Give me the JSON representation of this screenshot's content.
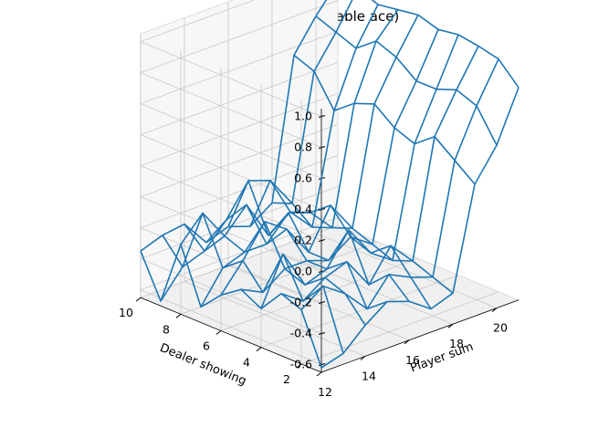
{
  "chart_data": {
    "type": "wireframe-3d",
    "title": "Value Function (Usable ace)",
    "xlabel": "Player sum",
    "ylabel": "Dealer showing",
    "zlabel": "",
    "x": [
      12,
      13,
      14,
      15,
      16,
      17,
      18,
      19,
      20,
      21
    ],
    "y": [
      1,
      2,
      3,
      4,
      5,
      6,
      7,
      8,
      9,
      10
    ],
    "xticks": [
      "12",
      "14",
      "16",
      "18",
      "20"
    ],
    "yticks": [
      "2",
      "4",
      "6",
      "8",
      "10"
    ],
    "zticks": [
      "-0.6",
      "-0.4",
      "-0.2",
      "0.0",
      "0.2",
      "0.4",
      "0.6",
      "0.8",
      "1.0"
    ],
    "zlim": [
      -0.65,
      1.05
    ],
    "grid": true,
    "color": "#1f77b4",
    "z": [
      [
        -0.62,
        -0.3,
        -0.25,
        -0.4,
        -0.33,
        -0.42,
        -0.55,
        -0.2,
        -0.62,
        -0.35
      ],
      [
        -0.58,
        -0.2,
        -0.35,
        -0.1,
        -0.4,
        -0.25,
        -0.35,
        -0.05,
        -0.45,
        -0.3
      ],
      [
        -0.45,
        -0.3,
        -0.25,
        -0.35,
        -0.3,
        -0.05,
        -0.3,
        -0.25,
        -0.4,
        -0.28
      ],
      [
        -0.35,
        -0.45,
        -0.2,
        -0.3,
        -0.3,
        -0.15,
        -0.3,
        -0.1,
        -0.25,
        -0.45
      ],
      [
        -0.4,
        -0.28,
        -0.4,
        -0.1,
        -0.35,
        -0.35,
        -0.15,
        -0.35,
        -0.05,
        -0.4
      ],
      [
        -0.5,
        -0.35,
        -0.2,
        -0.3,
        -0.25,
        -0.1,
        -0.2,
        -0.25,
        -0.1,
        -0.45
      ],
      [
        -0.45,
        -0.4,
        -0.35,
        -0.4,
        -0.35,
        -0.3,
        -0.35,
        -0.4,
        -0.3,
        -0.35
      ],
      [
        0.2,
        0.3,
        0.4,
        0.3,
        0.35,
        0.45,
        0.4,
        0.3,
        0.5,
        0.55
      ],
      [
        0.4,
        0.6,
        0.65,
        0.6,
        0.6,
        0.7,
        0.75,
        0.65,
        0.7,
        0.75
      ],
      [
        0.72,
        0.85,
        0.88,
        0.9,
        0.88,
        0.92,
        0.9,
        0.88,
        0.93,
        0.92
      ]
    ]
  }
}
